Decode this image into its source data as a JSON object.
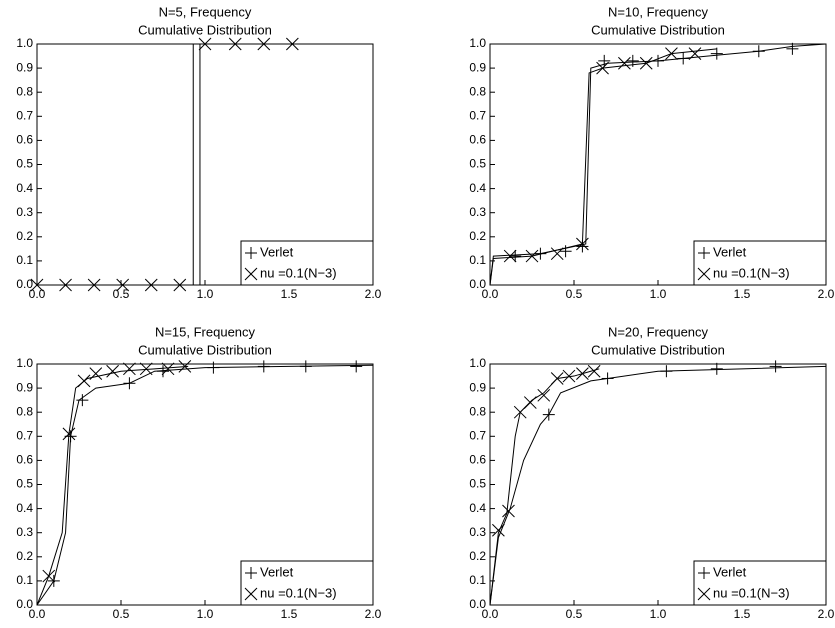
{
  "chart_data": [
    {
      "type": "line",
      "title": "N=5, Frequency",
      "subtitle": "Cumulative Distribution",
      "xlim": [
        0,
        2
      ],
      "ylim": [
        0,
        1
      ],
      "legend": "lower right",
      "xticks": [
        {
          "value": 0,
          "label": "0.0"
        },
        {
          "value": 0.5,
          "label": "0.5"
        },
        {
          "value": 1,
          "label": "1.0"
        },
        {
          "value": 1.5,
          "label": "1.5"
        },
        {
          "value": 2,
          "label": "2.0"
        }
      ],
      "yticks": [
        {
          "value": 0,
          "label": "0.0"
        },
        {
          "value": 0.1,
          "label": "0.1"
        },
        {
          "value": 0.2,
          "label": "0.2"
        },
        {
          "value": 0.3,
          "label": "0.3"
        },
        {
          "value": 0.4,
          "label": "0.4"
        },
        {
          "value": 0.5,
          "label": "0.5"
        },
        {
          "value": 0.6,
          "label": "0.6"
        },
        {
          "value": 0.7,
          "label": "0.7"
        },
        {
          "value": 0.8,
          "label": "0.8"
        },
        {
          "value": 0.9,
          "label": "0.9"
        },
        {
          "value": 1,
          "label": "1.0"
        }
      ],
      "series": [
        {
          "name": "Verlet",
          "color": "#000000",
          "marker": "+",
          "x": [
            0,
            0.93,
            0.93,
            2
          ],
          "values": [
            0,
            0,
            1,
            1
          ],
          "markers": {
            "x": [],
            "values": []
          }
        },
        {
          "name": "nu =0.1(N−3)",
          "color": "#000000",
          "marker": "x",
          "x": [
            0,
            0.97,
            0.97,
            2
          ],
          "values": [
            0,
            0,
            1,
            1
          ],
          "markers": {
            "x": [
              0,
              0.17,
              0.34,
              0.51,
              0.68,
              0.85,
              1.0,
              1.18,
              1.35,
              1.52
            ],
            "values": [
              0,
              0,
              0,
              0,
              0,
              0,
              1,
              1,
              1,
              1
            ]
          }
        }
      ]
    },
    {
      "type": "line",
      "title": "N=10, Frequency",
      "subtitle": "Cumulative Distribution",
      "xlim": [
        0,
        2
      ],
      "ylim": [
        0,
        1
      ],
      "legend": "lower right",
      "xticks": [
        {
          "value": 0,
          "label": "0.0"
        },
        {
          "value": 0.5,
          "label": "0.5"
        },
        {
          "value": 1,
          "label": "1.0"
        },
        {
          "value": 1.5,
          "label": "1.5"
        },
        {
          "value": 2,
          "label": "2.0"
        }
      ],
      "yticks": [
        {
          "value": 0,
          "label": "0.0"
        },
        {
          "value": 0.1,
          "label": "0.1"
        },
        {
          "value": 0.2,
          "label": "0.2"
        },
        {
          "value": 0.3,
          "label": "0.3"
        },
        {
          "value": 0.4,
          "label": "0.4"
        },
        {
          "value": 0.5,
          "label": "0.5"
        },
        {
          "value": 0.6,
          "label": "0.6"
        },
        {
          "value": 0.7,
          "label": "0.7"
        },
        {
          "value": 0.8,
          "label": "0.8"
        },
        {
          "value": 0.9,
          "label": "0.9"
        },
        {
          "value": 1,
          "label": "1.0"
        }
      ],
      "series": [
        {
          "name": "Verlet",
          "color": "#000000",
          "marker": "+",
          "x": [
            0,
            0.02,
            0.3,
            0.57,
            0.6,
            0.7,
            1.0,
            1.3,
            1.6,
            1.8,
            2.0
          ],
          "values": [
            0,
            0.12,
            0.13,
            0.17,
            0.9,
            0.92,
            0.93,
            0.95,
            0.97,
            0.99,
            1.0
          ],
          "markers": {
            "x": [
              0.15,
              0.3,
              0.45,
              0.55,
              0.68,
              0.85,
              1.0,
              1.15,
              1.35,
              1.6,
              1.8
            ],
            "values": [
              0.12,
              0.13,
              0.14,
              0.16,
              0.93,
              0.93,
              0.93,
              0.94,
              0.96,
              0.97,
              0.98
            ]
          }
        },
        {
          "name": "nu =0.1(N−3)",
          "color": "#000000",
          "marker": "x",
          "x": [
            0,
            0.02,
            0.25,
            0.55,
            0.59,
            0.67,
            0.93,
            1.08,
            1.35
          ],
          "values": [
            0,
            0.11,
            0.12,
            0.17,
            0.88,
            0.9,
            0.92,
            0.96,
            0.98
          ],
          "markers": {
            "x": [
              0.12,
              0.25,
              0.4,
              0.55,
              0.67,
              0.8,
              0.93,
              1.08,
              1.22
            ],
            "values": [
              0.12,
              0.12,
              0.13,
              0.17,
              0.9,
              0.92,
              0.92,
              0.96,
              0.96
            ]
          }
        }
      ]
    },
    {
      "type": "line",
      "title": "N=15, Frequency",
      "subtitle": "Cumulative Distribution",
      "xlim": [
        0,
        2
      ],
      "ylim": [
        0,
        1
      ],
      "legend": "lower right",
      "xticks": [
        {
          "value": 0,
          "label": "0.0"
        },
        {
          "value": 0.5,
          "label": "0.5"
        },
        {
          "value": 1,
          "label": "1.0"
        },
        {
          "value": 1.5,
          "label": "1.5"
        },
        {
          "value": 2,
          "label": "2.0"
        }
      ],
      "yticks": [
        {
          "value": 0,
          "label": "0.0"
        },
        {
          "value": 0.1,
          "label": "0.1"
        },
        {
          "value": 0.2,
          "label": "0.2"
        },
        {
          "value": 0.3,
          "label": "0.3"
        },
        {
          "value": 0.4,
          "label": "0.4"
        },
        {
          "value": 0.5,
          "label": "0.5"
        },
        {
          "value": 0.6,
          "label": "0.6"
        },
        {
          "value": 0.7,
          "label": "0.7"
        },
        {
          "value": 0.8,
          "label": "0.8"
        },
        {
          "value": 0.9,
          "label": "0.9"
        },
        {
          "value": 1,
          "label": "1.0"
        }
      ],
      "series": [
        {
          "name": "Verlet",
          "color": "#000000",
          "marker": "+",
          "x": [
            0,
            0.1,
            0.17,
            0.2,
            0.25,
            0.35,
            0.55,
            0.7,
            1.0,
            1.5,
            2.0
          ],
          "values": [
            0,
            0.1,
            0.3,
            0.7,
            0.85,
            0.9,
            0.92,
            0.97,
            0.985,
            0.99,
            0.995
          ],
          "markers": {
            "x": [
              0.1,
              0.2,
              0.27,
              0.55,
              0.75,
              1.05,
              1.35,
              1.6,
              1.9
            ],
            "values": [
              0.1,
              0.7,
              0.85,
              0.92,
              0.97,
              0.985,
              0.99,
              0.99,
              0.99
            ]
          }
        },
        {
          "name": "nu =0.1(N−3)",
          "color": "#000000",
          "marker": "x",
          "x": [
            0,
            0.07,
            0.15,
            0.19,
            0.23,
            0.3,
            0.5,
            0.7,
            0.9
          ],
          "values": [
            0,
            0.12,
            0.3,
            0.71,
            0.9,
            0.94,
            0.97,
            0.98,
            0.99
          ],
          "markers": {
            "x": [
              0.07,
              0.19,
              0.28,
              0.35,
              0.45,
              0.55,
              0.65,
              0.78,
              0.88
            ],
            "values": [
              0.12,
              0.71,
              0.93,
              0.96,
              0.97,
              0.98,
              0.98,
              0.98,
              0.99
            ]
          }
        }
      ]
    },
    {
      "type": "line",
      "title": "N=20, Frequency",
      "subtitle": "Cumulative Distribution",
      "xlim": [
        0,
        2
      ],
      "ylim": [
        0,
        1
      ],
      "legend": "lower right",
      "xticks": [
        {
          "value": 0,
          "label": "0.0"
        },
        {
          "value": 0.5,
          "label": "0.5"
        },
        {
          "value": 1,
          "label": "1.0"
        },
        {
          "value": 1.5,
          "label": "1.5"
        },
        {
          "value": 2,
          "label": "2.0"
        }
      ],
      "yticks": [
        {
          "value": 0,
          "label": "0.0"
        },
        {
          "value": 0.1,
          "label": "0.1"
        },
        {
          "value": 0.2,
          "label": "0.2"
        },
        {
          "value": 0.3,
          "label": "0.3"
        },
        {
          "value": 0.4,
          "label": "0.4"
        },
        {
          "value": 0.5,
          "label": "0.5"
        },
        {
          "value": 0.6,
          "label": "0.6"
        },
        {
          "value": 0.7,
          "label": "0.7"
        },
        {
          "value": 0.8,
          "label": "0.8"
        },
        {
          "value": 0.9,
          "label": "0.9"
        },
        {
          "value": 1,
          "label": "1.0"
        }
      ],
      "series": [
        {
          "name": "Verlet",
          "color": "#000000",
          "marker": "+",
          "x": [
            0,
            0.05,
            0.12,
            0.2,
            0.3,
            0.35,
            0.42,
            0.6,
            0.7,
            1.0,
            1.5,
            2.0
          ],
          "values": [
            0,
            0.28,
            0.4,
            0.6,
            0.75,
            0.79,
            0.88,
            0.93,
            0.94,
            0.97,
            0.98,
            0.99
          ],
          "markers": {
            "x": [
              0.35,
              0.7,
              1.05,
              1.35,
              1.7
            ],
            "values": [
              0.79,
              0.94,
              0.97,
              0.98,
              0.99
            ]
          }
        },
        {
          "name": "nu =0.1(N−3)",
          "color": "#000000",
          "marker": "x",
          "x": [
            0,
            0.05,
            0.1,
            0.15,
            0.18,
            0.25,
            0.32,
            0.4,
            0.5,
            0.6,
            0.65
          ],
          "values": [
            0,
            0.3,
            0.38,
            0.7,
            0.8,
            0.85,
            0.88,
            0.94,
            0.95,
            0.97,
            0.98
          ],
          "markers": {
            "x": [
              0.05,
              0.11,
              0.18,
              0.24,
              0.32,
              0.4,
              0.47,
              0.55,
              0.62
            ],
            "values": [
              0.31,
              0.39,
              0.8,
              0.84,
              0.87,
              0.94,
              0.95,
              0.96,
              0.97
            ]
          }
        }
      ]
    }
  ]
}
